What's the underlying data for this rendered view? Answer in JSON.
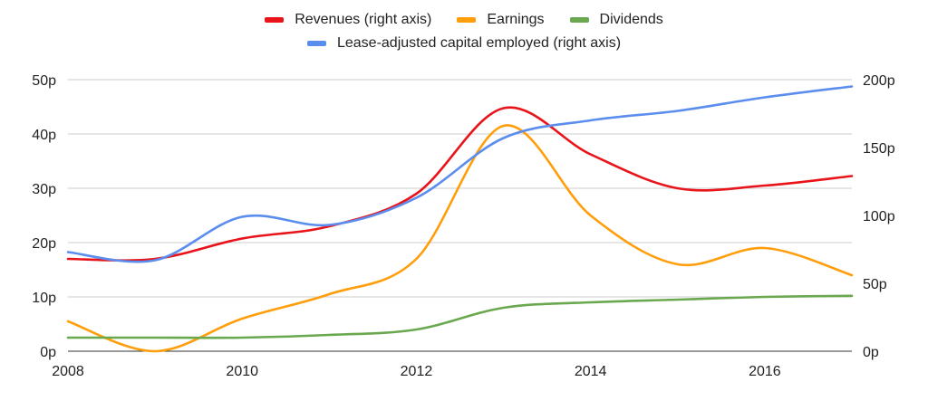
{
  "chart_data": {
    "type": "line",
    "title": "",
    "legend_position": "top",
    "grid": true,
    "x_ticks": [
      "2008",
      "2010",
      "2012",
      "2014",
      "2016"
    ],
    "xlim": [
      2008,
      2017
    ],
    "y_left": {
      "lim": [
        0,
        50
      ],
      "ticks": [
        "0p",
        "10p",
        "20p",
        "30p",
        "40p",
        "50p"
      ]
    },
    "y_right": {
      "lim": [
        0,
        200
      ],
      "ticks": [
        "0p",
        "50p",
        "100p",
        "150p",
        "200p"
      ]
    },
    "series": [
      {
        "name": "Revenues (right axis)",
        "axis": "right",
        "color": "#e8141a",
        "x": [
          2008,
          2009,
          2010,
          2011,
          2012,
          2013,
          2014,
          2015,
          2016,
          2017
        ],
        "values": [
          68,
          68,
          83,
          92,
          116,
          179,
          145,
          120,
          122,
          129
        ]
      },
      {
        "name": "Earnings",
        "axis": "left",
        "color": "#ff9e0a",
        "x": [
          2008,
          2009,
          2010,
          2011,
          2012,
          2013,
          2014,
          2015,
          2016,
          2017
        ],
        "values": [
          5.5,
          0,
          6,
          10.5,
          17,
          41.5,
          25,
          16,
          19,
          14
        ]
      },
      {
        "name": "Dividends",
        "axis": "left",
        "color": "#6aa84f",
        "x": [
          2008,
          2009,
          2010,
          2011,
          2012,
          2013,
          2014,
          2015,
          2016,
          2017
        ],
        "values": [
          2.5,
          2.5,
          2.5,
          3,
          4,
          8,
          9,
          9.5,
          10,
          10.2
        ]
      },
      {
        "name": "Lease-adjusted capital employed (right axis)",
        "axis": "right",
        "color": "#5b8def",
        "x": [
          2008,
          2009,
          2010,
          2011,
          2012,
          2013,
          2014,
          2015,
          2016,
          2017
        ],
        "values": [
          73,
          67,
          99,
          93,
          113,
          157,
          170,
          177,
          187,
          195
        ]
      }
    ]
  }
}
